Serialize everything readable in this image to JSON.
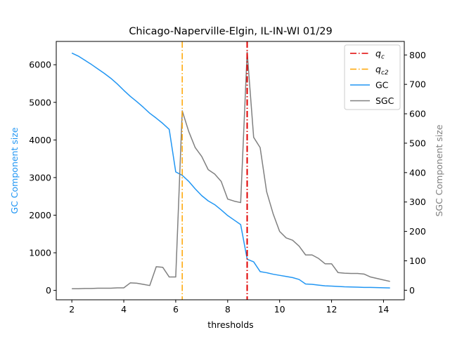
{
  "chart_data": {
    "type": "line",
    "title": "Chicago-Naperville-Elgin, IL-IN-WI 01/29",
    "xlabel": "thresholds",
    "ylabel_left": "GC Component size",
    "ylabel_right": "SGC Component size",
    "xlim": [
      1.4,
      14.8
    ],
    "ylim_left": [
      -250,
      6620
    ],
    "ylim_right": [
      -32.5,
      846
    ],
    "xticks": [
      2,
      4,
      6,
      8,
      10,
      12,
      14
    ],
    "yticks_left": [
      0,
      1000,
      2000,
      3000,
      4000,
      5000,
      6000
    ],
    "yticks_right": [
      0,
      100,
      200,
      300,
      400,
      500,
      600,
      700,
      800
    ],
    "colors": {
      "gc": "#2196f3",
      "sgc": "#808080",
      "qc": "#e00000",
      "qc2": "#ffa500"
    },
    "legend": {
      "placement": "top-right",
      "entries": [
        {
          "key": "qc",
          "label_main": "q",
          "label_sub": "c",
          "style": "dashdot"
        },
        {
          "key": "qc2",
          "label_main": "q",
          "label_sub": "c2",
          "style": "dashdot"
        },
        {
          "key": "gc",
          "label": "GC",
          "style": "solid"
        },
        {
          "key": "sgc",
          "label": "SGC",
          "style": "solid"
        }
      ]
    },
    "vlines": {
      "qc": 8.75,
      "qc2": 6.25
    },
    "x": [
      2.0,
      2.25,
      2.5,
      2.75,
      3.0,
      3.25,
      3.5,
      3.75,
      4.0,
      4.25,
      4.5,
      4.75,
      5.0,
      5.25,
      5.5,
      5.75,
      6.0,
      6.25,
      6.5,
      6.75,
      7.0,
      7.25,
      7.5,
      7.75,
      8.0,
      8.25,
      8.5,
      8.75,
      9.0,
      9.25,
      9.5,
      9.75,
      10.0,
      10.25,
      10.5,
      10.75,
      11.0,
      11.25,
      11.5,
      11.75,
      12.0,
      12.25,
      12.5,
      12.75,
      13.0,
      13.25,
      13.5,
      13.75,
      14.0,
      14.25
    ],
    "series": [
      {
        "name": "GC",
        "axis": "left",
        "values": [
          6310,
          6230,
          6120,
          6010,
          5890,
          5770,
          5640,
          5490,
          5320,
          5160,
          5020,
          4870,
          4710,
          4580,
          4440,
          4280,
          3150,
          3060,
          2900,
          2700,
          2520,
          2380,
          2280,
          2140,
          1990,
          1870,
          1750,
          830,
          760,
          500,
          470,
          430,
          400,
          370,
          340,
          290,
          170,
          160,
          140,
          120,
          115,
          105,
          95,
          90,
          85,
          80,
          80,
          75,
          70,
          65
        ]
      },
      {
        "name": "SGC",
        "axis": "right",
        "values": [
          5,
          5,
          6,
          6,
          7,
          7,
          7,
          8,
          8,
          25,
          24,
          20,
          16,
          80,
          78,
          45,
          45,
          610,
          540,
          485,
          455,
          410,
          395,
          370,
          310,
          303,
          298,
          810,
          520,
          485,
          335,
          260,
          200,
          178,
          170,
          150,
          120,
          120,
          108,
          90,
          90,
          60,
          58,
          57,
          57,
          55,
          45,
          40,
          35,
          30
        ]
      }
    ]
  }
}
